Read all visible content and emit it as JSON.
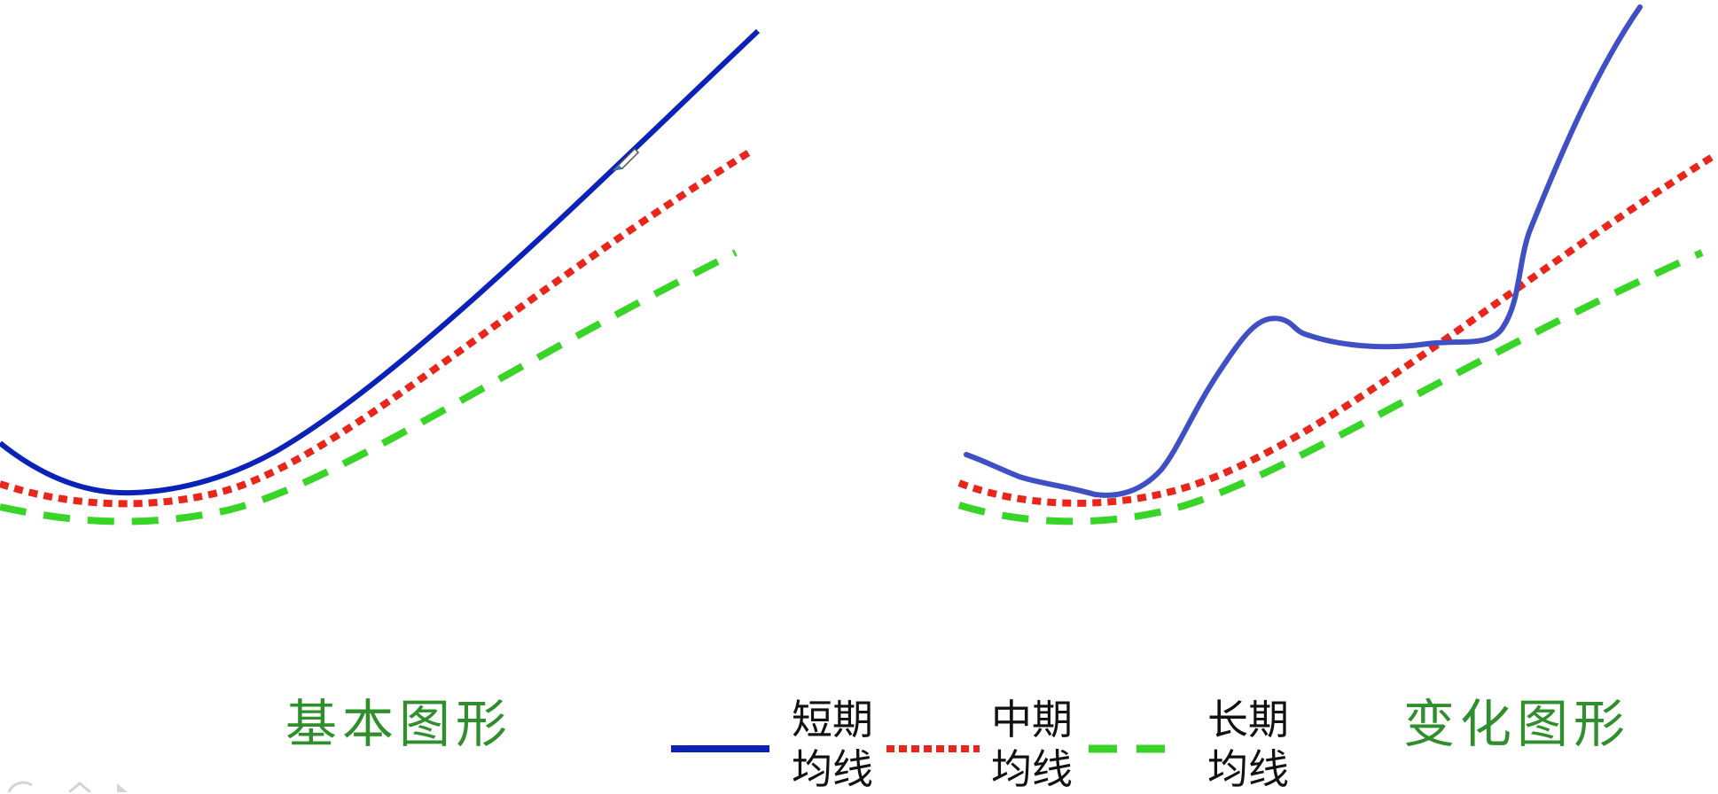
{
  "panels": {
    "left": {
      "title": "基本图形"
    },
    "right": {
      "title": "变化图形"
    }
  },
  "legend": {
    "items": [
      {
        "line1": "短期",
        "line2": "均线",
        "color": "#0a22b8",
        "style": "solid"
      },
      {
        "line1": "中期",
        "line2": "均线",
        "color": "#e8261c",
        "style": "dotted"
      },
      {
        "line1": "长期",
        "line2": "均线",
        "color": "#39d428",
        "style": "dashed"
      }
    ]
  },
  "colors": {
    "title_green": "#2f8f2c",
    "short_right": "#3f4fc4"
  }
}
